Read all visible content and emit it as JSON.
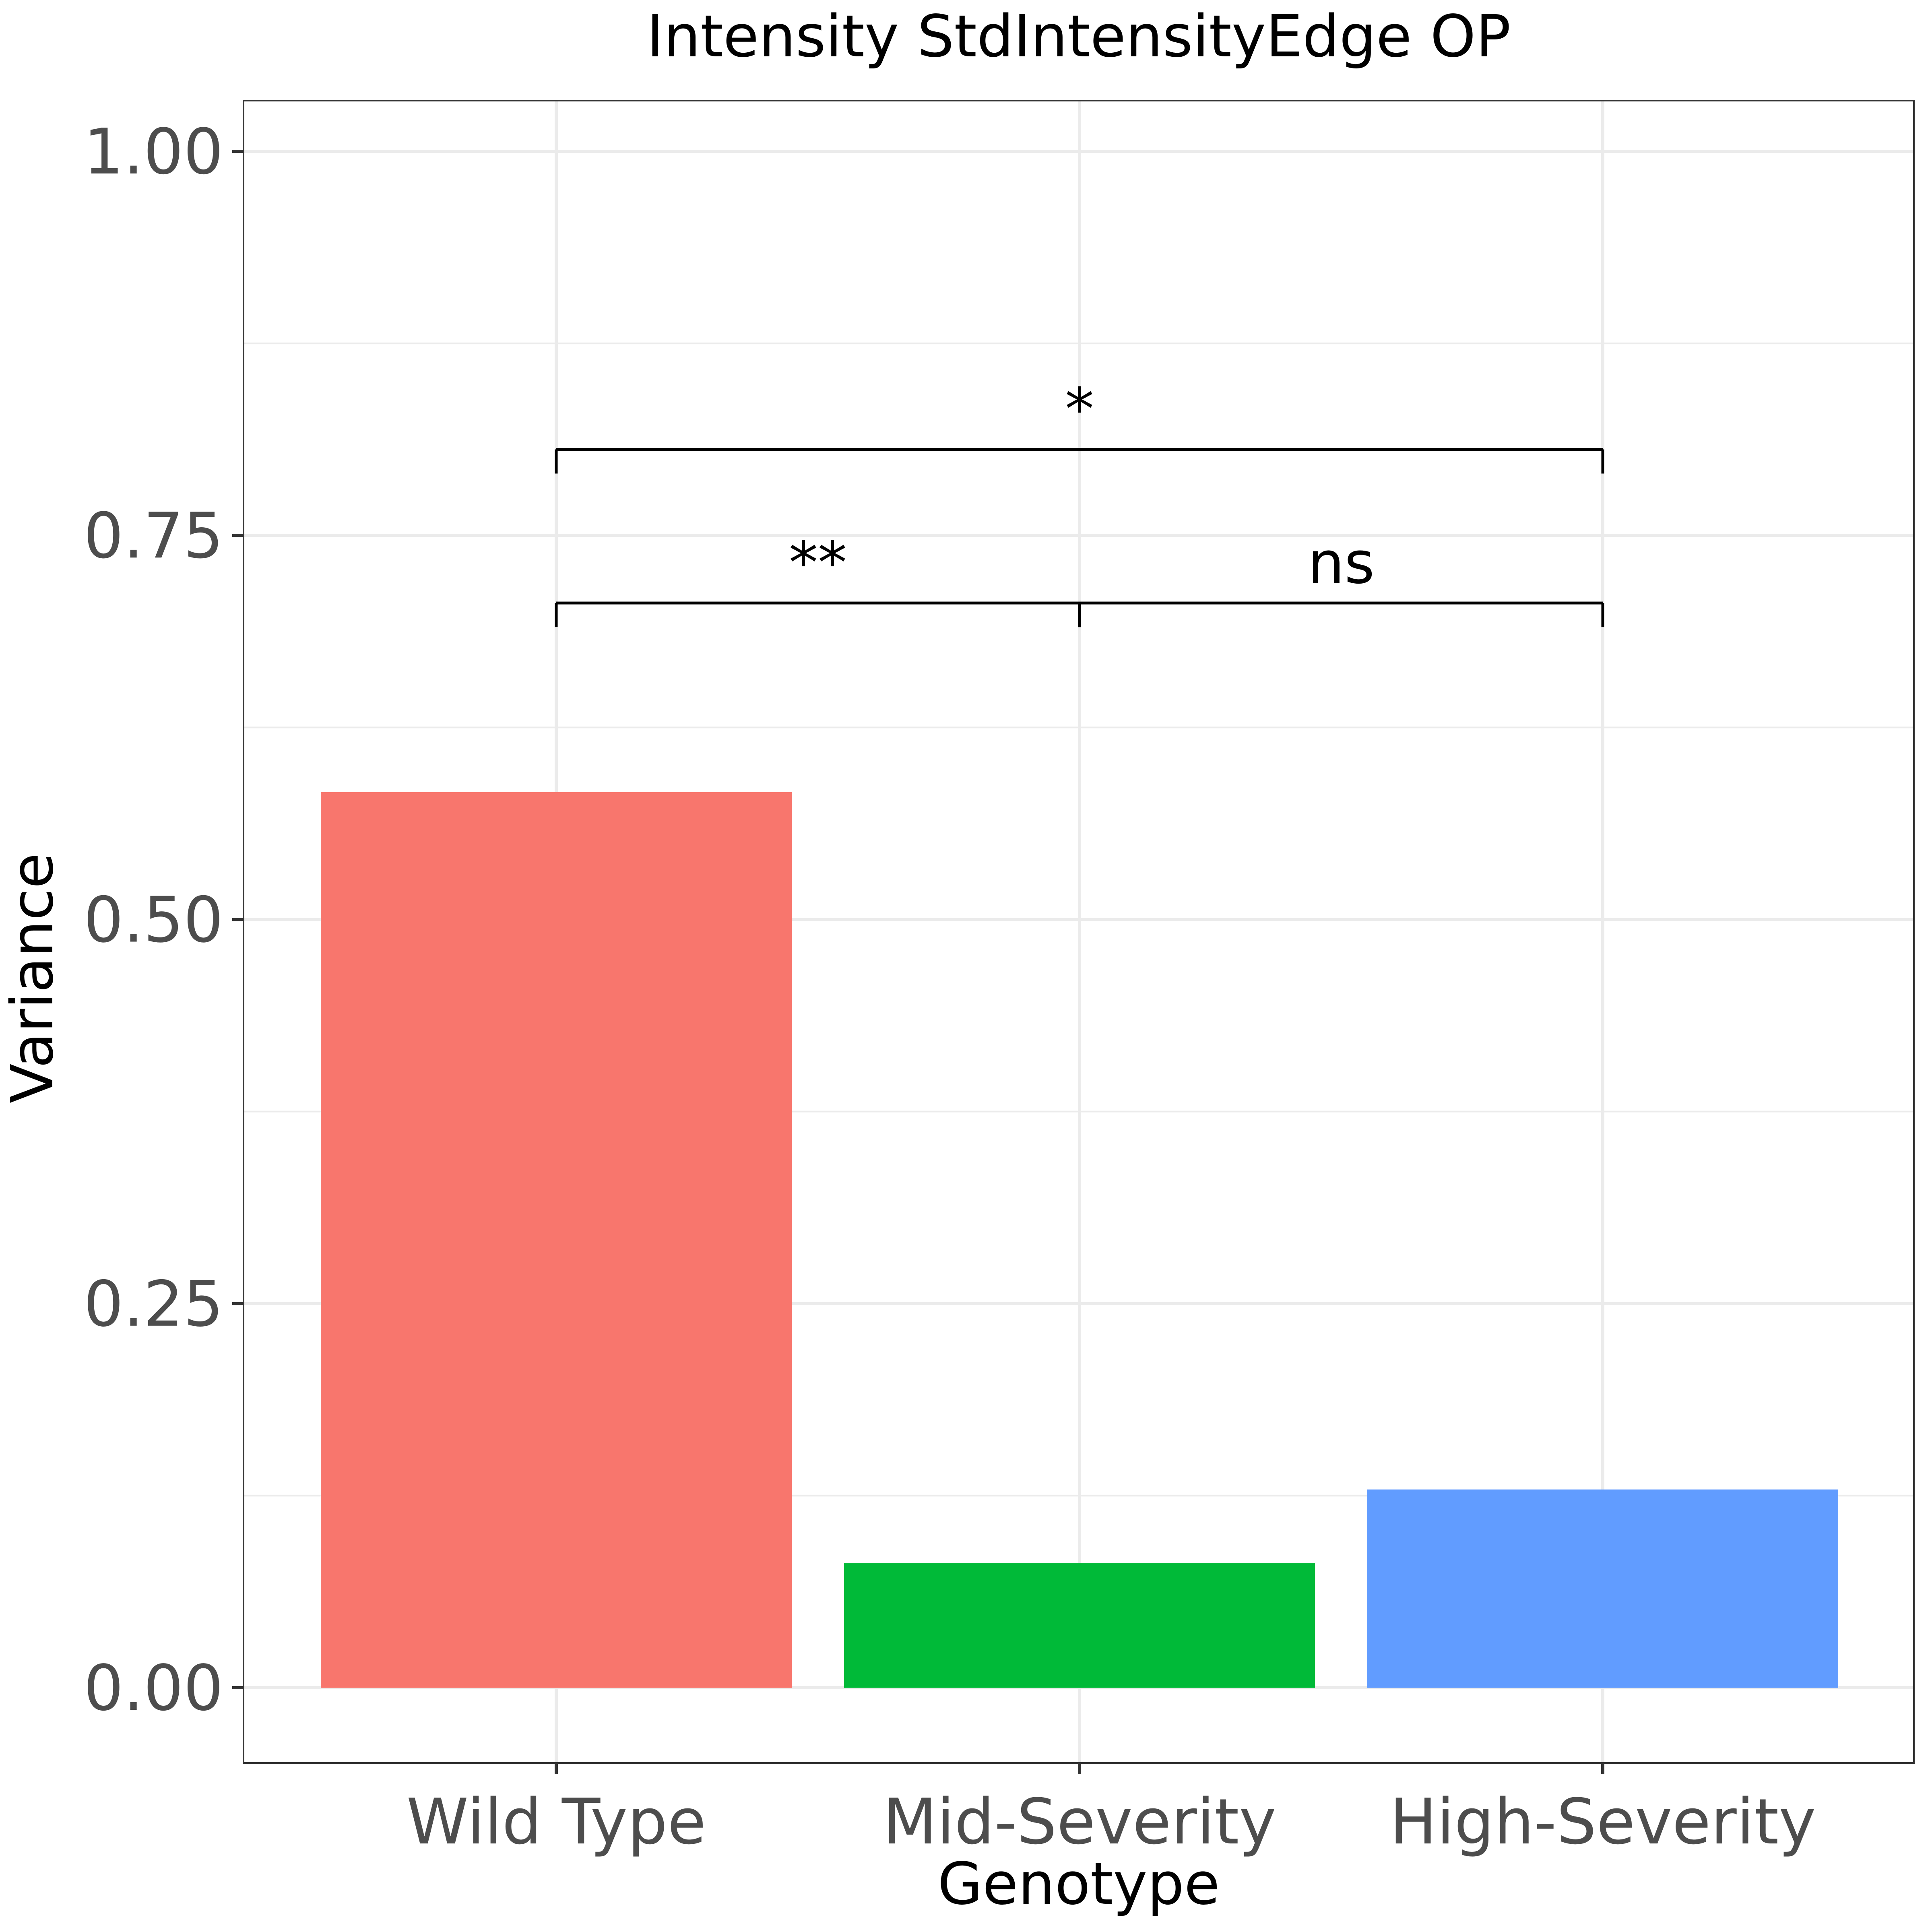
{
  "chart_data": {
    "type": "bar",
    "title": "Intensity StdIntensityEdge OP",
    "xlabel": "Genotype",
    "ylabel": "Variance",
    "categories": [
      "Wild Type",
      "Mid-Severity",
      "High-Severity"
    ],
    "values": [
      0.583,
      0.081,
      0.129
    ],
    "colors": [
      "#F8766D",
      "#00BA38",
      "#619CFF"
    ],
    "ylim": [
      -0.049,
      1.033
    ],
    "yticks": [
      0.0,
      0.25,
      0.5,
      0.75,
      1.0
    ],
    "ytick_labels": [
      "0.00",
      "0.25",
      "0.50",
      "0.75",
      "1.00"
    ],
    "grid": true,
    "significance": [
      {
        "from": 0,
        "to": 1,
        "y": 0.706,
        "label": "**"
      },
      {
        "from": 1,
        "to": 2,
        "y": 0.706,
        "label": "ns"
      },
      {
        "from": 0,
        "to": 2,
        "y": 0.806,
        "label": "*"
      }
    ]
  }
}
